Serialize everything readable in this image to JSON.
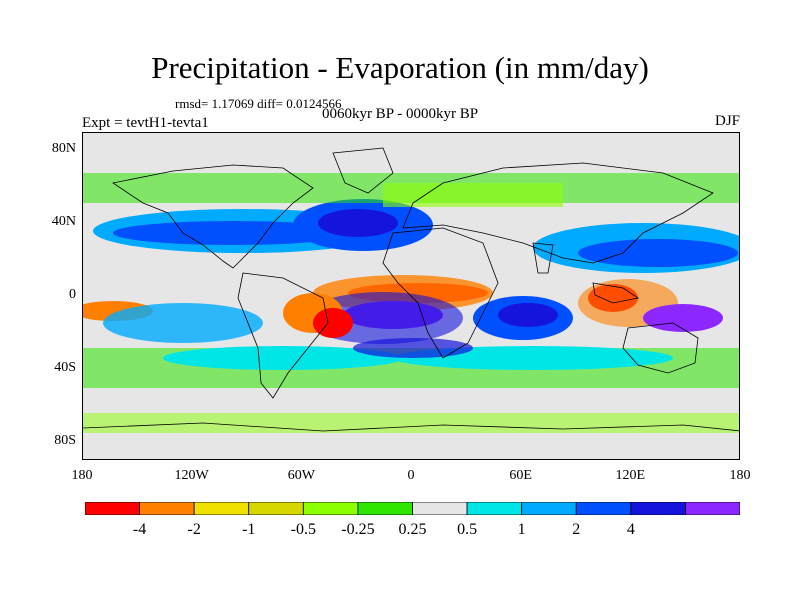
{
  "header": {
    "title": "Precipitation - Evaporation (in mm/day)",
    "stats": "rmsd= 1.17069 diff= 0.0124566",
    "subtitle": "0060kyr BP - 0000kyr BP",
    "left_label": "Expt = tevtH1-tevta1",
    "right_label": "DJF"
  },
  "map": {
    "projection": "cylindrical equidistant",
    "lon_range": [
      -180,
      180
    ],
    "lat_range": [
      -90,
      90
    ],
    "background": "#e6e6e6",
    "y_ticks": [
      "80N",
      "40N",
      "0",
      "40S",
      "80S"
    ],
    "y_tick_values": [
      80,
      40,
      0,
      -40,
      -80
    ],
    "x_ticks": [
      "180",
      "120W",
      "60W",
      "0",
      "60E",
      "120E",
      "180"
    ],
    "x_tick_values": [
      -180,
      -120,
      -60,
      0,
      60,
      120,
      180
    ]
  },
  "colorbar": {
    "colors": [
      "#ff0000",
      "#ff8000",
      "#f0e000",
      "#d6d600",
      "#8cff00",
      "#2ee600",
      "#e6e6e6",
      "#00e6e6",
      "#00aaff",
      "#0050ff",
      "#1414dc",
      "#8c28ff"
    ],
    "labels": [
      "-4",
      "-2",
      "-1",
      "-0.5",
      "-0.25",
      "0.25",
      "0.5",
      "1",
      "2",
      "4"
    ]
  }
}
